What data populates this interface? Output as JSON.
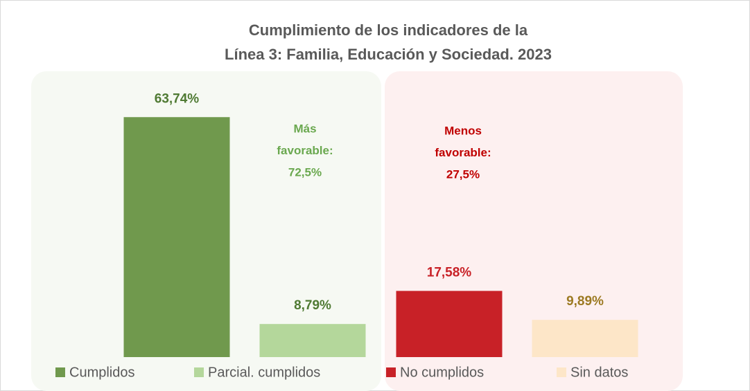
{
  "chart_data": {
    "type": "bar",
    "title": [
      "Cumplimiento de los indicadores de la",
      "Línea 3: Familia, Educación y Sociedad. 2023"
    ],
    "categories": [
      "Cumplidos",
      "Parcial. cumplidos",
      "No cumplidos",
      "Sin datos"
    ],
    "values": [
      63.74,
      8.79,
      17.58,
      9.89
    ],
    "value_labels": [
      "63,74%",
      "8,79%",
      "17,58%",
      "9,89%"
    ],
    "colors": [
      "#70994d",
      "#b4d79b",
      "#c82127",
      "#fde6c8"
    ],
    "label_colors": [
      "#4f7a33",
      "#4f7a33",
      "#c82127",
      "#9c7a22"
    ],
    "ylim": [
      0,
      70
    ],
    "annotations": [
      {
        "lines": [
          "Más",
          "favorable:",
          "72,5%"
        ],
        "color": "#6aa84f"
      },
      {
        "lines": [
          "Menos",
          "favorable:",
          "27,5%"
        ],
        "color": "#c00000"
      }
    ]
  }
}
